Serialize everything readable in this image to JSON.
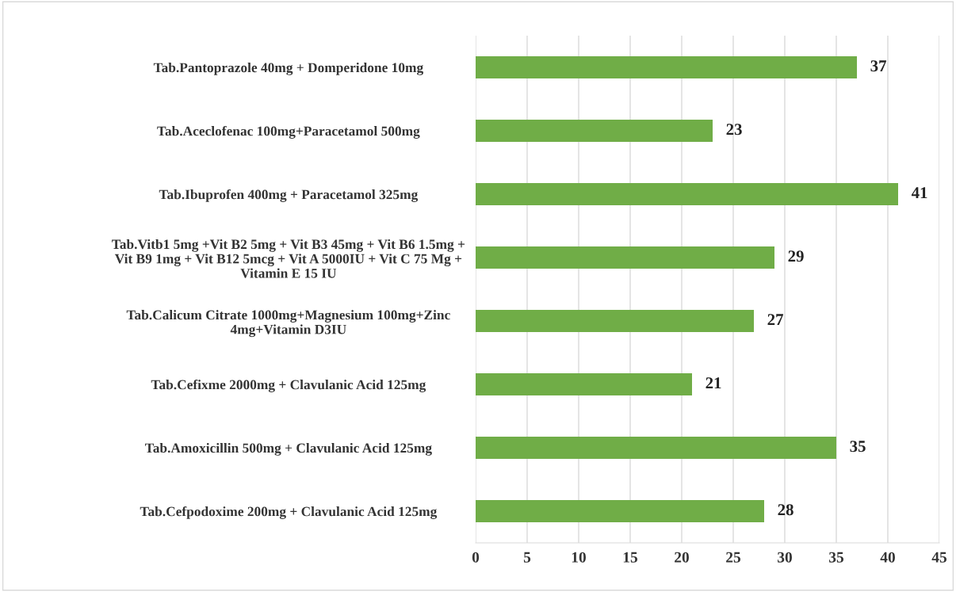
{
  "chart_data": {
    "type": "bar",
    "orientation": "horizontal",
    "categories": [
      "Tab.Pantoprazole 40mg + Domperidone 10mg",
      "Tab.Aceclofenac 100mg+Paracetamol 500mg",
      "Tab.Ibuprofen 400mg + Paracetamol 325mg",
      "Tab.Vitb1 5mg +Vit B2 5mg + Vit B3 45mg + Vit B6 1.5mg +\nVit B9 1mg + Vit B12 5mcg + Vit A 5000IU + Vit C 75 Mg +\nVitamin E 15 IU",
      "Tab.Calicum Citrate 1000mg+Magnesium 100mg+Zinc\n4mg+Vitamin D3IU",
      "Tab.Cefixme 2000mg + Clavulanic Acid 125mg",
      "Tab.Amoxicillin 500mg + Clavulanic Acid 125mg",
      "Tab.Cefpodoxime 200mg + Clavulanic Acid 125mg"
    ],
    "values": [
      37,
      23,
      41,
      29,
      27,
      21,
      35,
      28
    ],
    "color": "#70ad47",
    "xlim": [
      0,
      45
    ],
    "xticks": [
      0,
      5,
      10,
      15,
      20,
      25,
      30,
      35,
      40,
      45
    ],
    "grid": "x",
    "data_labels": true
  }
}
